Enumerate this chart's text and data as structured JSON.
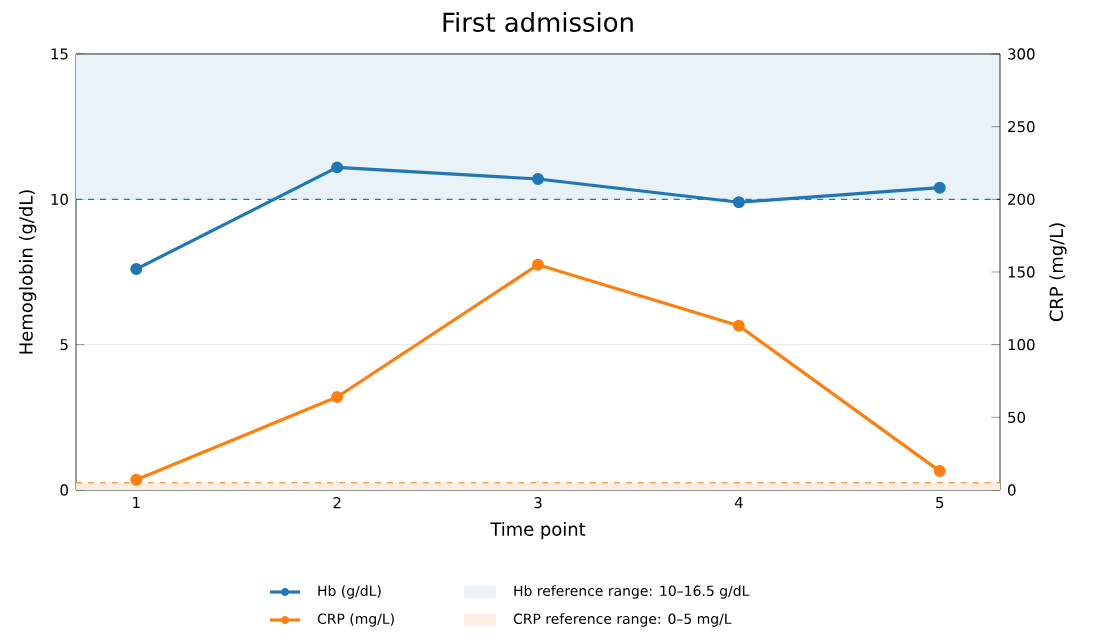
{
  "chart_data": {
    "type": "line",
    "title": "First admission",
    "xlabel": "Time point",
    "ylabel": "Hemoglobin (g/dL)",
    "y2label": "CRP (mg/L)",
    "x": [
      1,
      2,
      3,
      4,
      5
    ],
    "series": [
      {
        "name": "Hb (g/dL)",
        "color": "#1f77b4",
        "values": [
          7.6,
          11.1,
          10.7,
          9.9,
          10.4
        ]
      },
      {
        "name": "CRP (mg/L)",
        "color": "#ff7f0e",
        "axis": "y2",
        "values": [
          7,
          64,
          155,
          113,
          13
        ]
      }
    ],
    "xlim": [
      0.7,
      5.3
    ],
    "xticks": [
      1,
      2,
      3,
      4,
      5
    ],
    "ylim": [
      0,
      15
    ],
    "yticks": [
      0,
      5,
      10,
      15
    ],
    "y2lim": [
      0,
      300
    ],
    "y2ticks": [
      0,
      50,
      100,
      150,
      200,
      250,
      300
    ],
    "bands": [
      {
        "axis": "y",
        "from": 10,
        "to": 16.5,
        "label": "Hb reference range: 10–16.5 g/dL",
        "color": "#e8f2f7"
      },
      {
        "axis": "y2",
        "from": 0,
        "to": 5,
        "label": "CRP reference range: 0–5 mg/L",
        "color": "#fdeee4"
      }
    ],
    "ref_lines": [
      {
        "axis": "y",
        "value": 10,
        "color": "#1f77b4",
        "line_style": "dashed"
      },
      {
        "axis": "y2",
        "value": 5,
        "color": "#ff7f0e",
        "line_style": "dashed"
      }
    ],
    "grid": "y",
    "legend": "bottom",
    "marker": "circle",
    "line_style": "solid"
  }
}
